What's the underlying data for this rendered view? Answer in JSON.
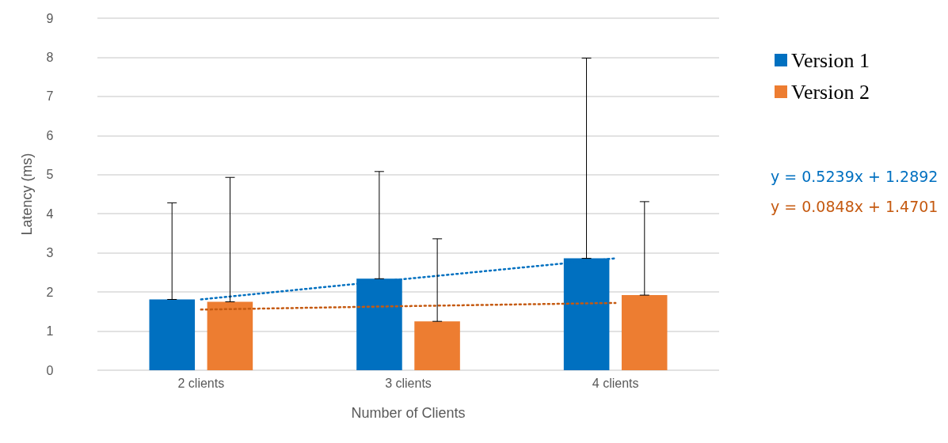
{
  "chart_data": {
    "type": "bar",
    "xlabel": "Number of Clients",
    "ylabel": "Latency (ms)",
    "categories": [
      "2 clients",
      "3 clients",
      "4 clients"
    ],
    "series": [
      {
        "name": "Version 1",
        "color": "#0070c0",
        "values": [
          1.81,
          2.34,
          2.86
        ],
        "errors": [
          [
            1.81,
            4.28
          ],
          [
            2.34,
            5.08
          ],
          [
            2.86,
            7.98
          ]
        ]
      },
      {
        "name": "Version 2",
        "color": "#ed7d31",
        "values": [
          1.75,
          1.25,
          1.92
        ],
        "errors": [
          [
            1.75,
            4.93
          ],
          [
            1.25,
            3.36
          ],
          [
            1.92,
            4.31
          ]
        ]
      },
      {
        "type": "line",
        "color": "#0070c0",
        "line_style": "dotted",
        "x": [
          "2 clients",
          "3 clients",
          "4 clients"
        ],
        "values": [
          1.81,
          2.34,
          2.86
        ]
      },
      {
        "type": "line",
        "color": "#c55a11",
        "line_style": "dotted",
        "x": [
          "2 clients",
          "3 clients",
          "4 clients"
        ],
        "values": [
          1.55,
          1.64,
          1.72
        ]
      }
    ],
    "annotations": [
      "y = 0.5239x + 1.2892",
      "y = 0.0848x + 1.4701"
    ],
    "ylim": [
      0,
      9
    ],
    "yticks": [
      0,
      1,
      2,
      3,
      4,
      5,
      6,
      7,
      8,
      9
    ],
    "grid": "y",
    "legend": "right",
    "marker": "none"
  }
}
